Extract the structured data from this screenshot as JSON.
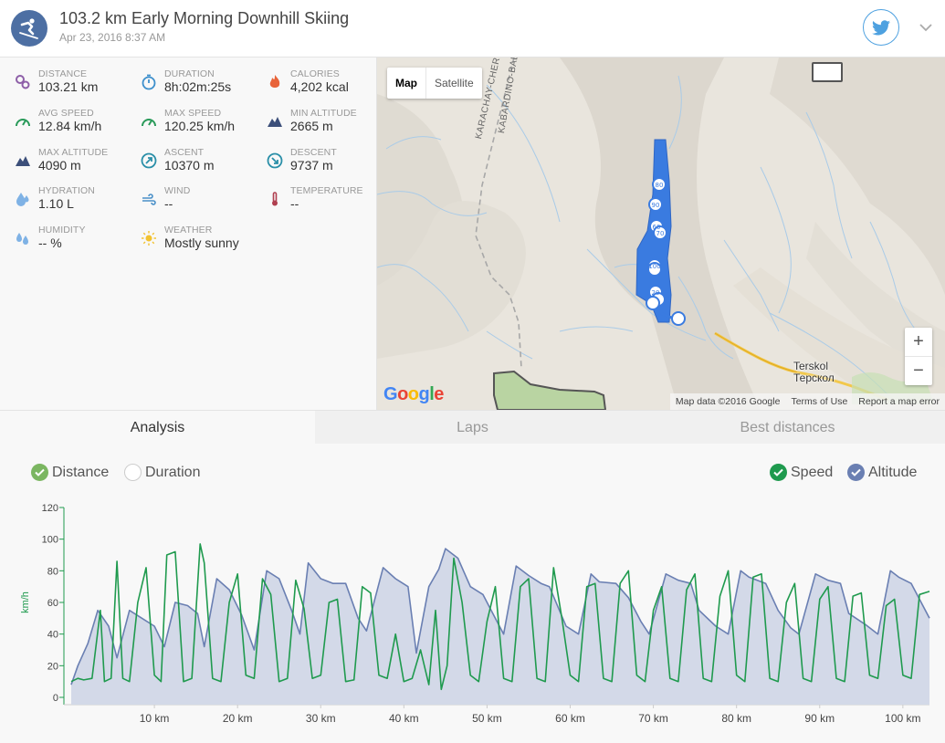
{
  "header": {
    "title": "103.2 km Early Morning Downhill Skiing",
    "date": "Apr 23, 2016 8:37 AM",
    "sport_icon": "skier-icon",
    "share_icon": "twitter-icon",
    "menu_icon": "chevron-down-icon"
  },
  "stats": [
    {
      "key": "distance",
      "label": "DISTANCE",
      "value": "103.21 km",
      "icon": "location-pin-icon",
      "color": "#8e5fa8"
    },
    {
      "key": "duration",
      "label": "DURATION",
      "value": "8h:02m:25s",
      "icon": "stopwatch-icon",
      "color": "#3d8fcc"
    },
    {
      "key": "calories",
      "label": "CALORIES",
      "value": "4,202 kcal",
      "icon": "flame-icon",
      "color": "#e8643a"
    },
    {
      "key": "avg_speed",
      "label": "AVG SPEED",
      "value": "12.84 km/h",
      "icon": "speedometer-icon",
      "color": "#2a9a5a"
    },
    {
      "key": "max_speed",
      "label": "MAX SPEED",
      "value": "120.25 km/h",
      "icon": "speedometer-icon",
      "color": "#2a9a5a"
    },
    {
      "key": "min_altitude",
      "label": "MIN ALTITUDE",
      "value": "2665 m",
      "icon": "mountain-icon",
      "color": "#3c4f7a"
    },
    {
      "key": "max_altitude",
      "label": "MAX ALTITUDE",
      "value": "4090 m",
      "icon": "mountain-icon",
      "color": "#3c4f7a"
    },
    {
      "key": "ascent",
      "label": "ASCENT",
      "value": "10370 m",
      "icon": "ascent-icon",
      "color": "#2a8fa8"
    },
    {
      "key": "descent",
      "label": "DESCENT",
      "value": "9737 m",
      "icon": "descent-icon",
      "color": "#2a8fa8"
    },
    {
      "key": "hydration",
      "label": "HYDRATION",
      "value": "1.10 L",
      "icon": "water-drop-icon",
      "color": "#7fb2e5"
    },
    {
      "key": "wind",
      "label": "WIND",
      "value": "--",
      "icon": "wind-icon",
      "color": "#4a90c8"
    },
    {
      "key": "temperature",
      "label": "TEMPERATURE",
      "value": "--",
      "icon": "thermometer-icon",
      "color": "#b04050"
    },
    {
      "key": "humidity",
      "label": "HUMIDITY",
      "value": "-- %",
      "icon": "humidity-icon",
      "color": "#7fb2e5"
    },
    {
      "key": "weather",
      "label": "WEATHER",
      "value": "Mostly sunny",
      "icon": "sun-icon",
      "color": "#f2c230"
    }
  ],
  "map": {
    "type_buttons": [
      "Map",
      "Satellite"
    ],
    "active_type": "Map",
    "zoom_in": "+",
    "zoom_out": "−",
    "logo": "Google",
    "attribution": [
      "Map data ©2016 Google",
      "Terms of Use",
      "Report a map error"
    ],
    "places": [
      {
        "name": "Terskol",
        "name_local": "Терскол"
      }
    ],
    "road_labels": [
      "KARACHAY-CHERKE",
      "KABARDINO-BALKA"
    ],
    "route_color": "#3a7be0",
    "marker_labels": [
      "80",
      "90",
      "60",
      "70",
      "100",
      "20"
    ]
  },
  "tabs": [
    {
      "label": "Analysis",
      "active": true
    },
    {
      "label": "Laps",
      "active": false
    },
    {
      "label": "Best distances",
      "active": false
    }
  ],
  "chart_toggles": {
    "left": [
      {
        "label": "Distance",
        "checked": true,
        "color": "#7bb661"
      },
      {
        "label": "Duration",
        "checked": false,
        "color": "#ffffff"
      }
    ],
    "right": [
      {
        "label": "Speed",
        "checked": true,
        "color": "#1f9a4e"
      },
      {
        "label": "Altitude",
        "checked": true,
        "color": "#6a7fb2"
      }
    ]
  },
  "chart_data": {
    "type": "line",
    "xlabel": "",
    "ylabel": "km/h",
    "xlim": [
      0,
      103.2
    ],
    "ylim": [
      0,
      120
    ],
    "yticks": [
      0,
      20,
      40,
      60,
      80,
      100,
      120
    ],
    "xticks": [
      10,
      20,
      30,
      40,
      50,
      60,
      70,
      80,
      90,
      100
    ],
    "xtick_labels": [
      "10 km",
      "20 km",
      "30 km",
      "40 km",
      "50 km",
      "60 km",
      "70 km",
      "80 km",
      "90 km",
      "100 km"
    ],
    "grid": false,
    "series": [
      {
        "name": "Altitude",
        "style": "area",
        "color": "#6a7fb2",
        "fill": "#d3d9e8",
        "x": [
          0.0,
          0.8,
          2.0,
          3.2,
          4.5,
          5.5,
          7.0,
          8.5,
          10.0,
          11.2,
          12.5,
          14.0,
          15.2,
          16.0,
          17.5,
          19.0,
          20.5,
          22.0,
          23.5,
          25.0,
          26.5,
          27.5,
          28.5,
          30.0,
          31.5,
          33.0,
          34.5,
          35.5,
          37.5,
          39.0,
          40.5,
          41.5,
          43.0,
          44.2,
          45.0,
          46.5,
          48.0,
          49.5,
          50.5,
          52.0,
          53.5,
          55.0,
          56.5,
          57.5,
          59.5,
          61.0,
          62.5,
          63.5,
          65.5,
          67.0,
          68.5,
          69.5,
          71.5,
          73.0,
          74.5,
          75.5,
          77.5,
          79.0,
          80.5,
          81.5,
          83.5,
          85.0,
          86.5,
          87.5,
          89.5,
          91.0,
          92.5,
          93.5,
          95.5,
          97.0,
          98.5,
          99.5,
          101.0,
          103.2
        ],
        "y": [
          8,
          20,
          34,
          55,
          45,
          25,
          55,
          50,
          45,
          32,
          60,
          58,
          53,
          32,
          75,
          68,
          52,
          30,
          80,
          75,
          55,
          40,
          85,
          75,
          72,
          72,
          50,
          42,
          82,
          75,
          70,
          28,
          70,
          81,
          94,
          88,
          70,
          65,
          55,
          40,
          83,
          77,
          72,
          70,
          45,
          40,
          78,
          73,
          72,
          63,
          48,
          40,
          78,
          74,
          72,
          55,
          45,
          40,
          80,
          76,
          72,
          55,
          44,
          40,
          78,
          74,
          72,
          53,
          46,
          40,
          80,
          76,
          72,
          50
        ]
      },
      {
        "name": "Speed",
        "style": "line",
        "color": "#1f9a4e",
        "x": [
          0.0,
          0.8,
          1.5,
          2.5,
          3.5,
          4.0,
          4.8,
          5.5,
          6.2,
          7.0,
          8.0,
          9.0,
          10.0,
          10.8,
          11.5,
          12.5,
          13.5,
          14.5,
          15.5,
          16.0,
          17.0,
          18.0,
          19.0,
          20.0,
          21.0,
          22.0,
          23.0,
          24.0,
          25.0,
          26.0,
          27.0,
          28.0,
          29.0,
          30.0,
          31.0,
          32.0,
          33.0,
          34.0,
          35.0,
          36.0,
          37.0,
          38.0,
          39.0,
          40.0,
          41.0,
          42.0,
          43.0,
          43.8,
          44.5,
          45.2,
          46.0,
          47.0,
          48.0,
          49.0,
          50.0,
          51.0,
          52.0,
          53.0,
          54.0,
          55.0,
          56.0,
          57.0,
          58.0,
          59.0,
          60.0,
          61.0,
          62.0,
          63.0,
          64.0,
          65.0,
          66.0,
          67.0,
          68.0,
          69.0,
          70.0,
          71.0,
          72.0,
          73.0,
          74.0,
          75.0,
          76.0,
          77.0,
          78.0,
          79.0,
          80.0,
          81.0,
          82.0,
          83.0,
          84.0,
          85.0,
          86.0,
          87.0,
          88.0,
          89.0,
          90.0,
          91.0,
          92.0,
          93.0,
          94.0,
          95.0,
          96.0,
          97.0,
          98.0,
          99.0,
          100.0,
          101.0,
          102.0,
          103.2
        ],
        "y": [
          10,
          12,
          11,
          12,
          55,
          10,
          12,
          86,
          12,
          10,
          60,
          82,
          14,
          10,
          90,
          92,
          10,
          12,
          97,
          85,
          12,
          10,
          60,
          78,
          14,
          12,
          75,
          65,
          10,
          12,
          74,
          56,
          12,
          14,
          60,
          62,
          10,
          11,
          70,
          66,
          14,
          12,
          40,
          10,
          12,
          30,
          8,
          55,
          5,
          20,
          88,
          60,
          14,
          10,
          48,
          70,
          12,
          10,
          70,
          75,
          12,
          10,
          82,
          50,
          14,
          10,
          70,
          72,
          12,
          10,
          72,
          80,
          14,
          10,
          55,
          70,
          12,
          10,
          68,
          78,
          12,
          10,
          64,
          80,
          14,
          10,
          76,
          78,
          12,
          10,
          60,
          72,
          12,
          10,
          62,
          70,
          12,
          10,
          64,
          66,
          14,
          12,
          58,
          62,
          14,
          12,
          65,
          67
        ]
      }
    ]
  }
}
